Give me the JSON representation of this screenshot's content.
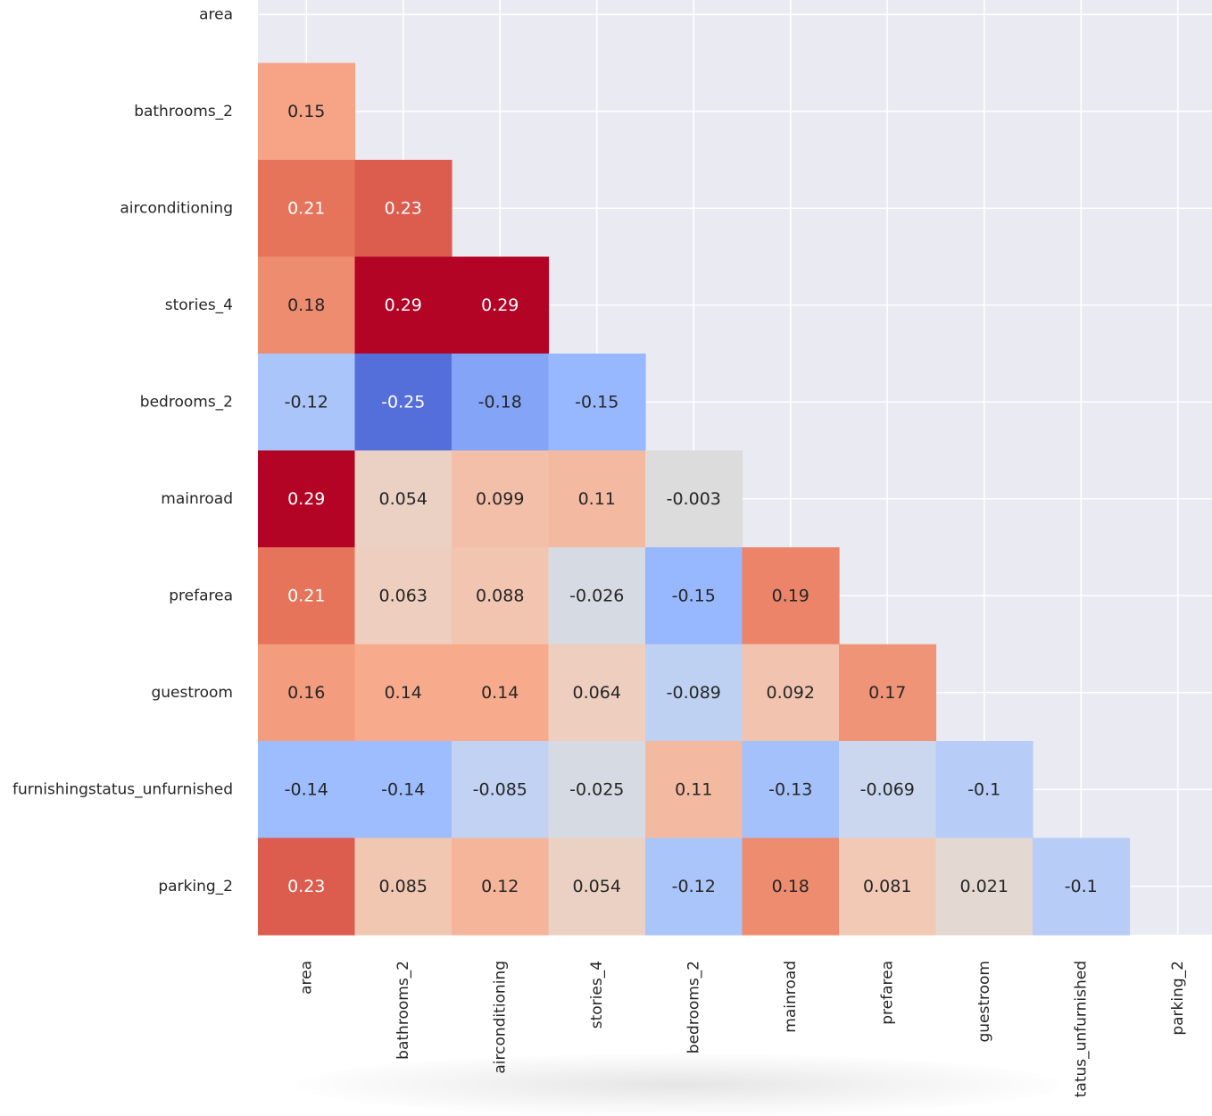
{
  "chart_data": {
    "type": "heatmap",
    "title": "",
    "xlabel": "",
    "ylabel": "",
    "mask": "upper-triangle-including-diagonal",
    "colormap": "coolwarm",
    "vmin": -0.29,
    "vmax": 0.29,
    "rows": [
      "area",
      "bathrooms_2",
      "airconditioning",
      "stories_4",
      "bedrooms_2",
      "mainroad",
      "prefarea",
      "guestroom",
      "furnishingstatus_unfurnished",
      "parking_2"
    ],
    "columns": [
      "area",
      "bathrooms_2",
      "airconditioning",
      "stories_4",
      "bedrooms_2",
      "mainroad",
      "prefarea",
      "guestroom",
      "furnishingstatus_unfurnished",
      "parking_2"
    ],
    "column_labels_displayed": [
      "area",
      "bathrooms_2",
      "airconditioning",
      "stories_4",
      "bedrooms_2",
      "mainroad",
      "prefarea",
      "guestroom",
      "tatus_unfurnished",
      "parking_2"
    ],
    "values": [
      [
        null,
        null,
        null,
        null,
        null,
        null,
        null,
        null,
        null,
        null
      ],
      [
        0.15,
        null,
        null,
        null,
        null,
        null,
        null,
        null,
        null,
        null
      ],
      [
        0.21,
        0.23,
        null,
        null,
        null,
        null,
        null,
        null,
        null,
        null
      ],
      [
        0.18,
        0.29,
        0.29,
        null,
        null,
        null,
        null,
        null,
        null,
        null
      ],
      [
        -0.12,
        -0.25,
        -0.18,
        -0.15,
        null,
        null,
        null,
        null,
        null,
        null
      ],
      [
        0.29,
        0.054,
        0.099,
        0.11,
        -0.003,
        null,
        null,
        null,
        null,
        null
      ],
      [
        0.21,
        0.063,
        0.088,
        -0.026,
        -0.15,
        0.19,
        null,
        null,
        null,
        null
      ],
      [
        0.16,
        0.14,
        0.14,
        0.064,
        -0.089,
        0.092,
        0.17,
        null,
        null,
        null
      ],
      [
        -0.14,
        -0.14,
        -0.085,
        -0.025,
        0.11,
        -0.13,
        -0.069,
        -0.1,
        null,
        null
      ],
      [
        0.23,
        0.085,
        0.12,
        0.054,
        -0.12,
        0.18,
        0.081,
        0.021,
        -0.1,
        null
      ]
    ],
    "labels": [
      [
        null,
        null,
        null,
        null,
        null,
        null,
        null,
        null,
        null,
        null
      ],
      [
        "0.15",
        null,
        null,
        null,
        null,
        null,
        null,
        null,
        null,
        null
      ],
      [
        "0.21",
        "0.23",
        null,
        null,
        null,
        null,
        null,
        null,
        null,
        null
      ],
      [
        "0.18",
        "0.29",
        "0.29",
        null,
        null,
        null,
        null,
        null,
        null,
        null
      ],
      [
        "-0.12",
        "-0.25",
        "-0.18",
        "-0.15",
        null,
        null,
        null,
        null,
        null,
        null
      ],
      [
        "0.29",
        "0.054",
        "0.099",
        "0.11",
        "-0.003",
        null,
        null,
        null,
        null,
        null
      ],
      [
        "0.21",
        "0.063",
        "0.088",
        "-0.026",
        "-0.15",
        "0.19",
        null,
        null,
        null,
        null
      ],
      [
        "0.16",
        "0.14",
        "0.14",
        "0.064",
        "-0.089",
        "0.092",
        "0.17",
        null,
        null,
        null
      ],
      [
        "-0.14",
        "-0.14",
        "-0.085",
        "-0.025",
        "0.11",
        "-0.13",
        "-0.069",
        "-0.1",
        null,
        null
      ],
      [
        "0.23",
        "0.085",
        "0.12",
        "0.054",
        "-0.12",
        "0.18",
        "0.081",
        "0.021",
        "-0.1",
        null
      ]
    ],
    "grid": true,
    "colors": {
      "axes_background": "#eaeaf2",
      "grid_line": "#ffffff",
      "tick_label": "#262626",
      "annotation_light": "#ffffff",
      "annotation_dark": "#262626",
      "cmap_stops": [
        "#3b4cc0",
        "#6a8bef",
        "#9abbff",
        "#c9d7f0",
        "#dddcdc",
        "#f0cdbb",
        "#f7a889",
        "#e46e56",
        "#b40426"
      ]
    }
  }
}
